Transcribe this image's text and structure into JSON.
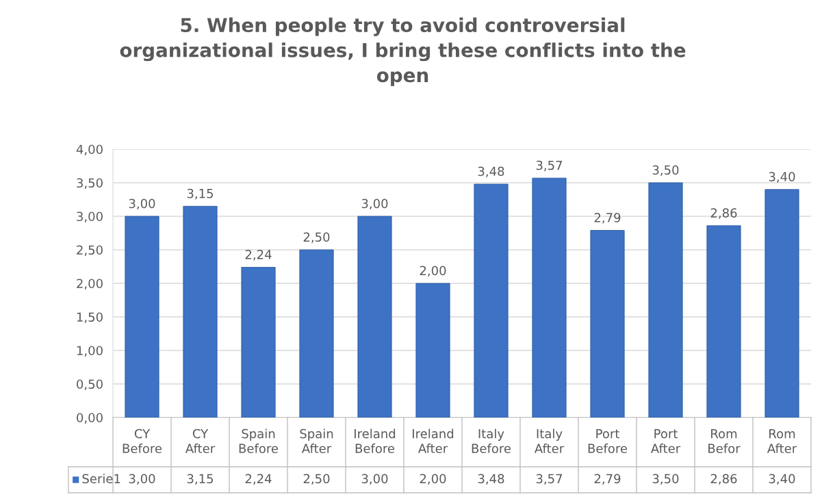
{
  "chart_data": {
    "type": "bar",
    "title": "5. When people try to avoid controversial\norganizational issues, I bring these conflicts into the\nopen",
    "categories": [
      "CY\nBefore",
      "CY\nAfter",
      "Spain\nBefore",
      "Spain\nAfter",
      "Ireland\nBefore",
      "Ireland\nAfter",
      "Italy\nBefore",
      "Italy\nAfter",
      "Port\nBefore",
      "Port\nAfter",
      "Rom\nBefor",
      "Rom\nAfter"
    ],
    "series": [
      {
        "name": "Serie1",
        "color": "#3d72c4",
        "values": [
          3.0,
          3.15,
          2.24,
          2.5,
          3.0,
          2.0,
          3.48,
          3.57,
          2.79,
          3.5,
          2.86,
          3.4
        ],
        "value_labels": [
          "3,00",
          "3,15",
          "2,24",
          "2,50",
          "3,00",
          "2,00",
          "3,48",
          "3,57",
          "2,79",
          "3,50",
          "2,86",
          "3,40"
        ]
      }
    ],
    "ylim": [
      0,
      4
    ],
    "yticks": [
      {
        "value": 0,
        "label": "0,00"
      },
      {
        "value": 0.5,
        "label": "0,50"
      },
      {
        "value": 1,
        "label": "1,00"
      },
      {
        "value": 1.5,
        "label": "1,50"
      },
      {
        "value": 2,
        "label": "2,00"
      },
      {
        "value": 2.5,
        "label": "2,50"
      },
      {
        "value": 3,
        "label": "3,00"
      },
      {
        "value": 3.5,
        "label": "3,50"
      },
      {
        "value": 4,
        "label": "4,00"
      }
    ],
    "grid": "y",
    "legend": "bottom"
  }
}
